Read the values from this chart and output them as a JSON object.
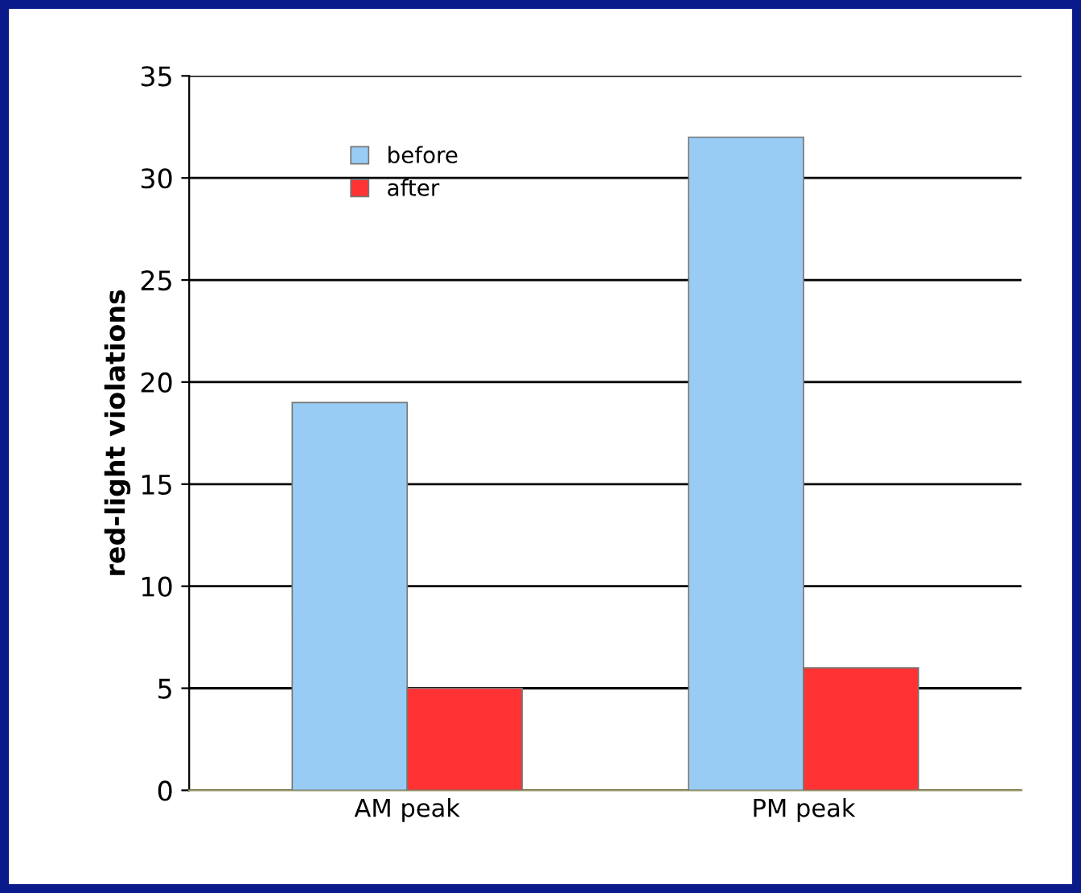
{
  "chart_data": {
    "type": "bar",
    "ylabel": "red-light violations",
    "categories": [
      "AM peak",
      "PM peak"
    ],
    "series": [
      {
        "name": "before",
        "color": "#99ccf5",
        "values": [
          19,
          32
        ]
      },
      {
        "name": "after",
        "color": "#ff3333",
        "values": [
          5,
          6
        ]
      }
    ],
    "ylim": [
      0,
      35
    ],
    "yticks": [
      0,
      5,
      10,
      15,
      20,
      25,
      30,
      35
    ],
    "grid": "y",
    "legend": "top left"
  }
}
